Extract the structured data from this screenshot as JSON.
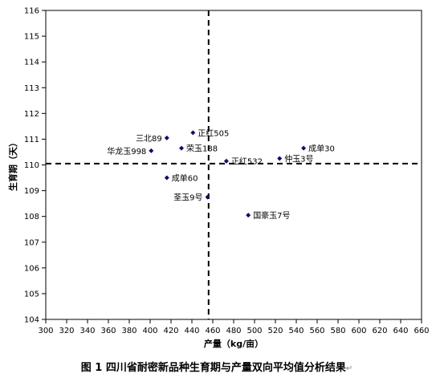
{
  "chart_data": {
    "type": "scatter",
    "title": "",
    "caption": "图 1 四川省耐密新品种生育期与产量双向平均值分析结果",
    "caption_mark": "↵",
    "xlabel": "产量（kg/亩）",
    "ylabel": "生育期（天）",
    "xlim": [
      300,
      660
    ],
    "ylim": [
      104,
      116
    ],
    "xticks": [
      300,
      320,
      340,
      360,
      380,
      400,
      420,
      440,
      460,
      480,
      500,
      520,
      540,
      560,
      580,
      600,
      620,
      640,
      660
    ],
    "yticks": [
      104,
      105,
      106,
      107,
      108,
      109,
      110,
      111,
      112,
      113,
      114,
      115,
      116
    ],
    "grid": false,
    "legend": "none",
    "mean_x": 456,
    "mean_y": 110.05,
    "marker_color": "#0d0d6b",
    "highlight_color": "#c00000",
    "points": [
      {
        "label": "三北89",
        "x": 416,
        "y": 111.05,
        "label_side": "left"
      },
      {
        "label": "正红505",
        "x": 441,
        "y": 111.25,
        "label_side": "right"
      },
      {
        "label": "荣玉188",
        "x": 430,
        "y": 110.65,
        "label_side": "right"
      },
      {
        "label": "华龙玉998",
        "x": 401,
        "y": 110.55,
        "label_side": "left"
      },
      {
        "label": "正红532",
        "x": 473,
        "y": 110.15,
        "label_side": "right"
      },
      {
        "label": "仲玉3号",
        "x": 524,
        "y": 110.25,
        "label_side": "right"
      },
      {
        "label": "成单30",
        "x": 547,
        "y": 110.65,
        "label_side": "right"
      },
      {
        "label": "成单60",
        "x": 416,
        "y": 109.5,
        "label_side": "right"
      },
      {
        "label": "荃玉9号",
        "x": 455,
        "y": 108.75,
        "label_side": "left"
      },
      {
        "label": "国豪玉7号",
        "x": 494,
        "y": 108.05,
        "label_side": "right",
        "highlight": true
      }
    ]
  }
}
